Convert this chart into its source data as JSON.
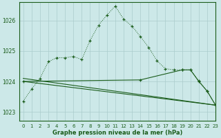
{
  "title": "Graphe pression niveau de la mer (hPa)",
  "bg_color": "#cce8e8",
  "grid_color": "#aacccc",
  "line_color": "#1a5c1a",
  "xlim": [
    -0.5,
    23
  ],
  "ylim": [
    1022.7,
    1026.6
  ],
  "yticks": [
    1023,
    1024,
    1025,
    1026
  ],
  "xtick_labels": [
    "0",
    "1",
    "2",
    "3",
    "4",
    "5",
    "6",
    "7",
    "8",
    "9",
    "10",
    "11",
    "12",
    "13",
    "14",
    "15",
    "16",
    "17",
    "18",
    "19",
    "20",
    "21",
    "22",
    "23"
  ],
  "line1_x": [
    0,
    1,
    2,
    3,
    4,
    5,
    6,
    7,
    8,
    9,
    10,
    11,
    12,
    13,
    14,
    15,
    16,
    17,
    18,
    19,
    20,
    21,
    22,
    23
  ],
  "line1_y": [
    1023.35,
    1023.75,
    1024.1,
    1024.65,
    1024.78,
    1024.78,
    1024.82,
    1024.72,
    1025.35,
    1025.85,
    1026.18,
    1026.48,
    1026.05,
    1025.82,
    1025.48,
    1025.12,
    1024.68,
    1024.42,
    1024.38,
    1024.38,
    1024.38,
    1024.02,
    1023.68,
    1023.22
  ],
  "line2_x": [
    0,
    23
  ],
  "line2_y": [
    1024.0,
    1023.22
  ],
  "line3_x": [
    0,
    23
  ],
  "line3_y": [
    1024.1,
    1023.22
  ],
  "line4_x": [
    0,
    14,
    19,
    20,
    21,
    22,
    23
  ],
  "line4_y": [
    1024.0,
    1024.05,
    1024.38,
    1024.38,
    1024.0,
    1023.68,
    1023.22
  ]
}
